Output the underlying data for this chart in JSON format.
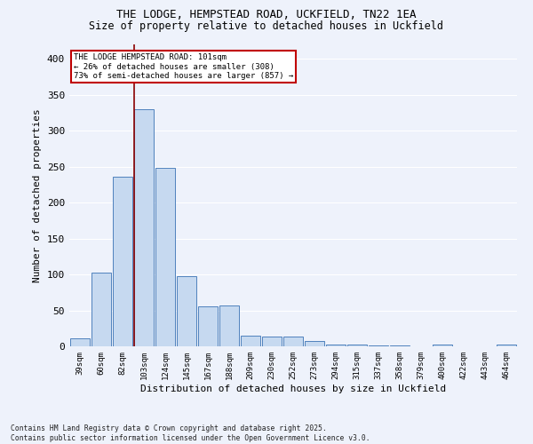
{
  "title_line1": "THE LODGE, HEMPSTEAD ROAD, UCKFIELD, TN22 1EA",
  "title_line2": "Size of property relative to detached houses in Uckfield",
  "xlabel": "Distribution of detached houses by size in Uckfield",
  "ylabel": "Number of detached properties",
  "categories": [
    "39sqm",
    "60sqm",
    "82sqm",
    "103sqm",
    "124sqm",
    "145sqm",
    "167sqm",
    "188sqm",
    "209sqm",
    "230sqm",
    "252sqm",
    "273sqm",
    "294sqm",
    "315sqm",
    "337sqm",
    "358sqm",
    "379sqm",
    "400sqm",
    "422sqm",
    "443sqm",
    "464sqm"
  ],
  "values": [
    11,
    102,
    236,
    330,
    248,
    97,
    55,
    57,
    15,
    14,
    13,
    8,
    3,
    3,
    1,
    1,
    0,
    3,
    0,
    0,
    2
  ],
  "bar_color": "#c6d9f0",
  "bar_edge_color": "#4f81bd",
  "line_color": "#8b0000",
  "line_x_index": 2.55,
  "annotation_text": "THE LODGE HEMPSTEAD ROAD: 101sqm\n← 26% of detached houses are smaller (308)\n73% of semi-detached houses are larger (857) →",
  "annotation_box_color": "#ffffff",
  "annotation_box_edge": "#c00000",
  "ylim": [
    0,
    420
  ],
  "yticks": [
    0,
    50,
    100,
    150,
    200,
    250,
    300,
    350,
    400
  ],
  "background_color": "#eef2fb",
  "grid_color": "#ffffff",
  "footer": "Contains HM Land Registry data © Crown copyright and database right 2025.\nContains public sector information licensed under the Open Government Licence v3.0."
}
